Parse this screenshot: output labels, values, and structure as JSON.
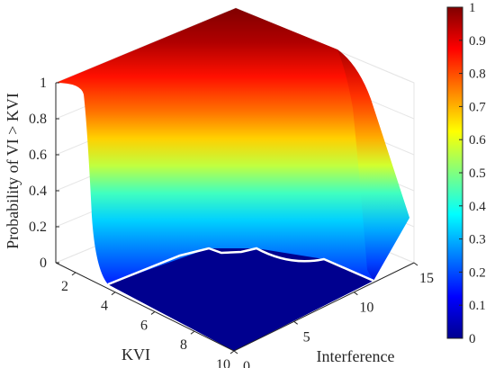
{
  "chart_data": {
    "type": "surface",
    "title": "",
    "xlabel": "Interference",
    "ylabel": "KVI",
    "zlabel": "Probability of VI > KVI",
    "xlim": [
      0,
      15
    ],
    "ylim": [
      1,
      10
    ],
    "zlim": [
      0,
      1
    ],
    "x_ticks": [
      "0",
      "5",
      "10",
      "15"
    ],
    "y_ticks": [
      "2",
      "4",
      "6",
      "8",
      "10"
    ],
    "z_ticks": [
      "0",
      "0.2",
      "0.4",
      "0.6",
      "0.8",
      "1"
    ],
    "grid": true,
    "colormap": "jet",
    "colorbar": {
      "placement": "right",
      "range": [
        0,
        1
      ],
      "ticks": [
        "0",
        "0.1",
        "0.2",
        "0.3",
        "0.4",
        "0.5",
        "0.6",
        "0.7",
        "0.8",
        "0.9",
        "1"
      ]
    },
    "surface": {
      "interference": [
        0,
        3,
        6,
        9,
        12,
        14,
        15
      ],
      "kvi": [
        1,
        1.5,
        2,
        3,
        4,
        6,
        8,
        10
      ],
      "probability": [
        [
          1,
          1,
          1,
          1,
          1,
          1,
          1
        ],
        [
          0.97,
          0.97,
          0.97,
          0.97,
          0.96,
          0.9,
          0.85
        ],
        [
          0.95,
          0.95,
          0.95,
          0.95,
          0.94,
          0.85,
          0.7
        ],
        [
          0.85,
          0.85,
          0.85,
          0.85,
          0.82,
          0.55,
          0.35
        ],
        [
          0.7,
          0.7,
          0.7,
          0.7,
          0.65,
          0.35,
          0.15
        ],
        [
          0.45,
          0.45,
          0.45,
          0.45,
          0.4,
          0.15,
          0.05
        ],
        [
          0.2,
          0.2,
          0.2,
          0.2,
          0.15,
          0.03,
          0.0
        ],
        [
          0,
          0,
          0,
          0,
          0,
          0,
          0
        ]
      ]
    },
    "contour_level": 0
  }
}
